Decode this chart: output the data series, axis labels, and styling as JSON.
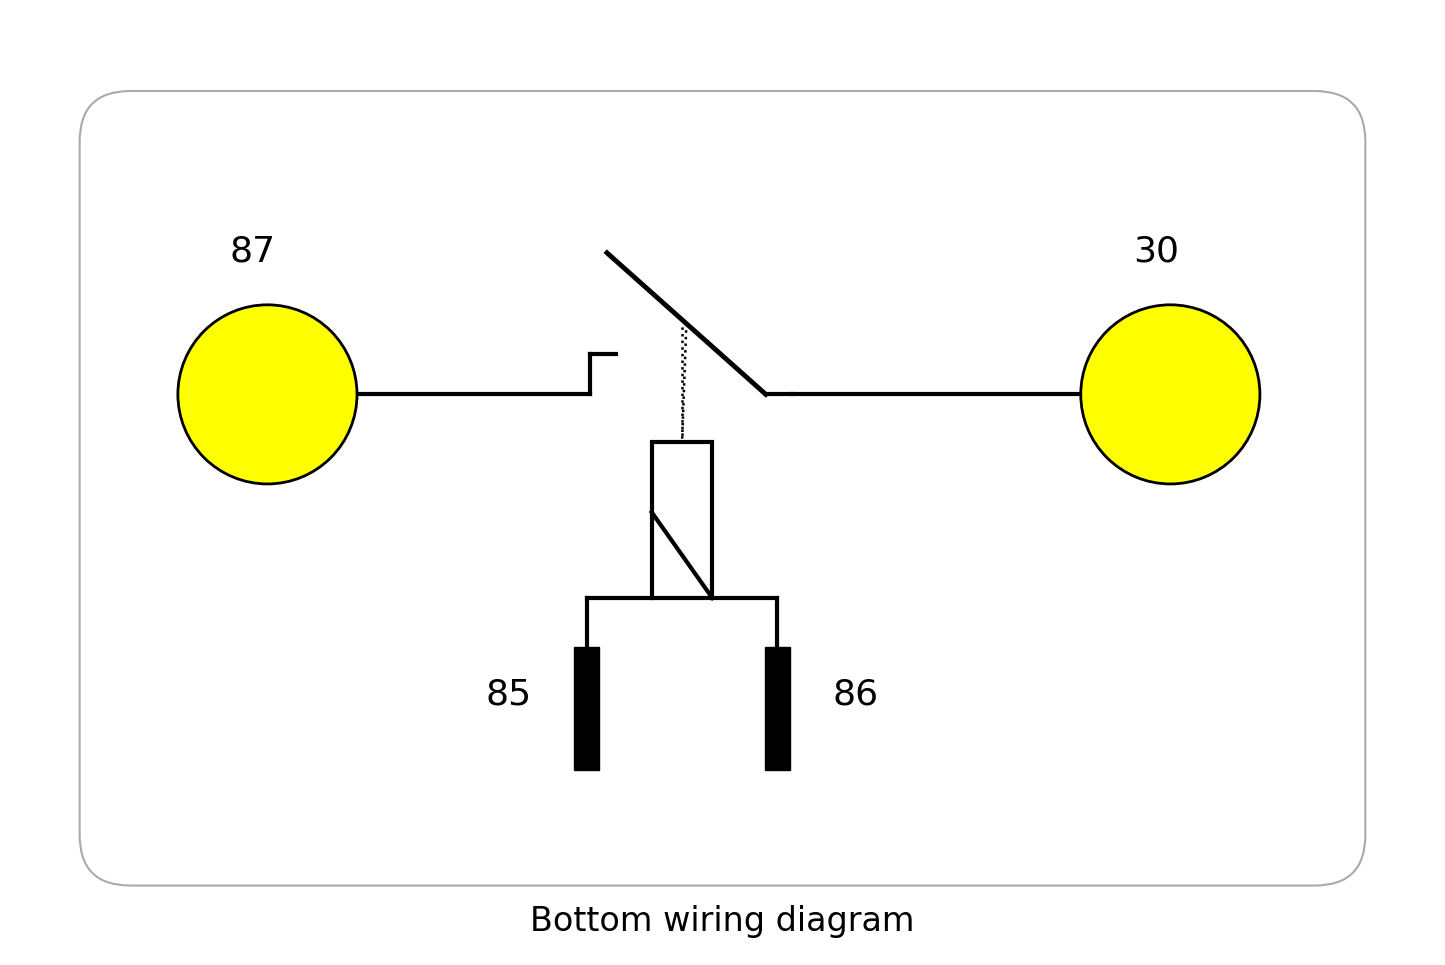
{
  "title": "Bottom wiring diagram",
  "title_fontsize": 24,
  "background_color": "#ffffff",
  "border_color": "#aaaaaa",
  "line_color": "#000000",
  "circle_color": "#ffff00",
  "circle_edge_color": "#000000",
  "figsize": [
    14.45,
    9.65
  ],
  "dpi": 100,
  "label_87": "87",
  "label_30": "30",
  "label_85": "85",
  "label_86": "86",
  "label_fontsize": 26
}
